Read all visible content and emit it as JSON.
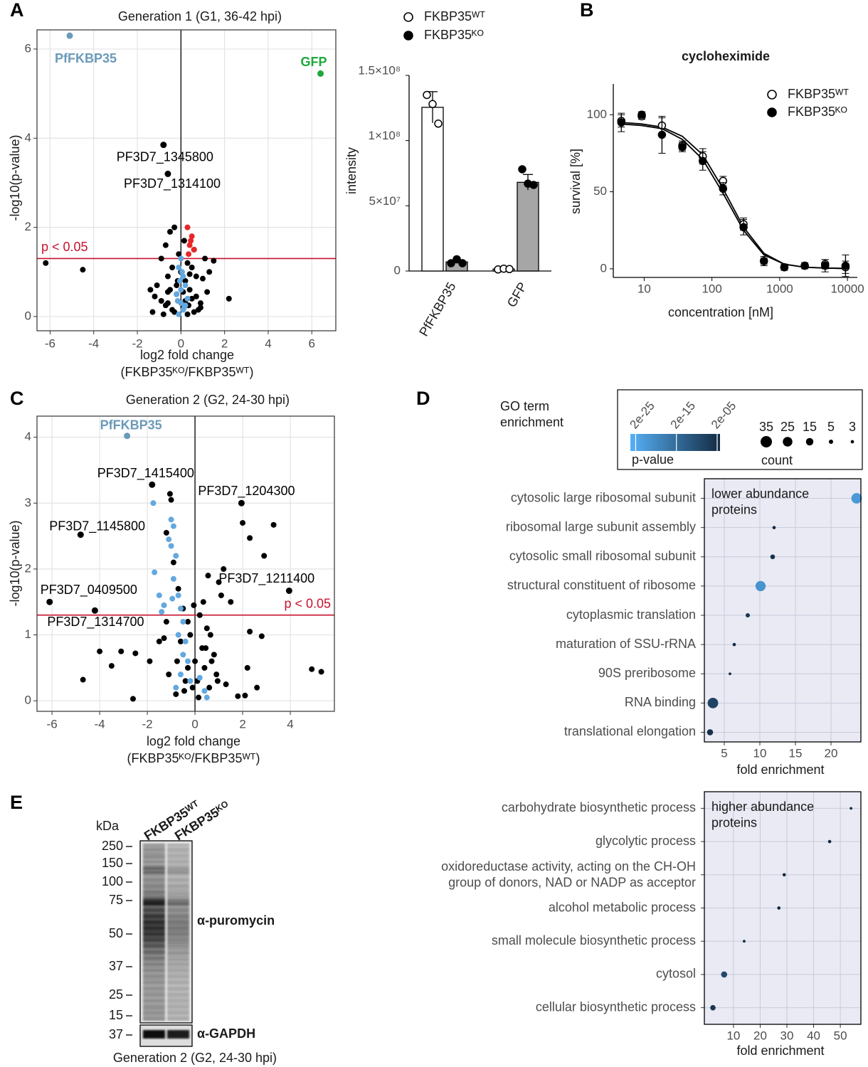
{
  "chart_data": [
    {
      "type": "scatter",
      "panel": "A",
      "title": "Generation 1 (G1, 36-42 hpi)",
      "xlabel": "log2 fold change",
      "xlabel2": "(FKBP35ᴷᴼ/FKBP35ᵂᵀ)",
      "ylabel": "-log10(p-value)",
      "xlim": [
        -6.6,
        7.1
      ],
      "ylim": [
        -0.32,
        6.43
      ],
      "xticks": [
        -6,
        -4,
        -2,
        0,
        2,
        4,
        6
      ],
      "yticks": [
        0,
        2,
        4,
        6
      ],
      "grid": true,
      "threshold": 1.301,
      "threshold_label": "p < 0.05",
      "threshold_color": "#c8102e",
      "series": [
        {
          "color": "#000000",
          "x": [
            -6.2,
            -4.5,
            -1.3,
            -1.1,
            -0.9,
            -0.7,
            -0.6,
            -0.5,
            -0.4,
            -0.3,
            -0.2,
            -0.1,
            0,
            0.1,
            0.2,
            0.3,
            0.4,
            0.5,
            0.6,
            0.7,
            0.9,
            1.1,
            1.3,
            2.2,
            -1.4,
            -0.8,
            -0.6,
            -0.3,
            0.2,
            0.5,
            0.8,
            1.2,
            -0.9,
            -0.5,
            0.3,
            0.7,
            1.0,
            -0.2,
            0.1,
            0.6,
            -1.2,
            -0.7,
            0.4,
            0.9,
            -0.4,
            0.15,
            -0.15,
            0.35,
            -0.6,
            1.5
          ],
          "values": [
            1.2,
            1.05,
            0.1,
            0.7,
            1.3,
            1.6,
            0.3,
            1.9,
            1.1,
            2.0,
            0.5,
            1.4,
            1.0,
            0.2,
            0.8,
            1.2,
            0.6,
            0.4,
            1.5,
            0.9,
            0.3,
            1.3,
            1.0,
            0.4,
            0.6,
            0.05,
            0.9,
            0.1,
            0.35,
            1.1,
            0.15,
            0.55,
            0.35,
            0.6,
            0.05,
            0.45,
            0.85,
            0.7,
            0.55,
            0.1,
            0.45,
            0.25,
            0.95,
            0.2,
            0.15,
            1.7,
            0.8,
            0.25,
            0.55,
            1.25
          ]
        },
        {
          "color": "#63a8df",
          "x": [
            0,
            -0.1,
            0.1,
            0.2,
            -0.2,
            0,
            0.1,
            -0.1,
            0.2,
            0,
            0.3,
            -0.05,
            0.05,
            0.15,
            -0.15
          ],
          "values": [
            1.3,
            1.1,
            0.9,
            0.7,
            0.5,
            0.3,
            0.15,
            0.05,
            0.25,
            0.6,
            0.4,
            0.8,
            1.0,
            0.2,
            0.35
          ]
        },
        {
          "color": "#e8262a",
          "x": [
            0.3,
            0.5,
            0.4,
            0.6,
            0.35,
            0.45
          ],
          "values": [
            2.0,
            1.8,
            1.6,
            1.5,
            1.4,
            1.7
          ]
        },
        {
          "color": "#6a9ab8",
          "label_bold": true,
          "x": [
            -5.1
          ],
          "values": [
            6.3
          ],
          "labels": [
            "PfFKBP35"
          ]
        },
        {
          "color": "#1ea83c",
          "label_bold": true,
          "x": [
            6.4
          ],
          "values": [
            5.45
          ],
          "labels": [
            "GFP"
          ]
        },
        {
          "color": "#000000",
          "x": [
            -0.8
          ],
          "values": [
            3.85
          ],
          "labels": [
            "PF3D7_1345800"
          ]
        },
        {
          "color": "#000000",
          "x": [
            -0.6
          ],
          "values": [
            3.2
          ],
          "labels": [
            "PF3D7_1314100"
          ]
        }
      ]
    },
    {
      "type": "bar",
      "ylabel": "intensity",
      "categories": [
        "PfFKBP35",
        "GFP"
      ],
      "ylim": [
        0,
        158700000
      ],
      "yticks": [
        0,
        {
          "value": 50000000,
          "label": "5×10⁷"
        },
        {
          "value": 100000000,
          "label": "1×10⁸"
        },
        {
          "value": 150000000,
          "label": "1.5×10⁸"
        }
      ],
      "series": [
        {
          "name": "FKBP35ᵂᵀ",
          "color": "#ffffff",
          "marker": "open",
          "values": [
            125500000,
            1500000
          ],
          "errors": [
            12000000,
            0
          ],
          "points": [
            [
              135000000,
              128000000,
              113000000
            ],
            [
              1200000,
              1800000,
              1500000
            ]
          ]
        },
        {
          "name": "FKBP35ᴷᴼ",
          "color": "#a6a6a6",
          "marker": "filled",
          "values": [
            7000000,
            68000000
          ],
          "errors": [
            1000000,
            6000000
          ],
          "points": [
            [
              6000000,
              9000000,
              6000000
            ],
            [
              78000000,
              67000000,
              66000000
            ]
          ]
        }
      ]
    },
    {
      "type": "line",
      "panel": "B",
      "title": "cycloheximide",
      "xlabel": "concentration [nM]",
      "ylabel": "survival [%]",
      "xlog": true,
      "xlim": [
        3.5,
        14000
      ],
      "ylim": [
        -5.6,
        120
      ],
      "xticks": [
        10,
        100,
        1000,
        10000
      ],
      "yticks": [
        0,
        50,
        100
      ],
      "x": [
        4.6,
        9.2,
        18.3,
        36.6,
        73.2,
        146,
        293,
        586,
        1172,
        2344,
        4688,
        9375
      ],
      "series": [
        {
          "name": "FKBP35ᵂᵀ",
          "color": "#000000",
          "marker": "open",
          "values": [
            96,
            99,
            93,
            80,
            73,
            57,
            29,
            5,
            1,
            2,
            3,
            1
          ],
          "errors": [
            4,
            2,
            5,
            3,
            5,
            3,
            4,
            2,
            2,
            1,
            3,
            4
          ],
          "fit": [
            95,
            94,
            92,
            86,
            74,
            52,
            27,
            10,
            3,
            1,
            0.5,
            0.2
          ]
        },
        {
          "name": "FKBP35ᴷᴼ",
          "color": "#000000",
          "marker": "filled",
          "values": [
            95,
            100,
            87,
            79,
            70,
            52,
            27,
            5,
            1,
            2,
            2,
            2
          ],
          "errors": [
            6,
            2,
            12,
            3,
            6,
            4,
            5,
            3,
            2,
            2,
            4,
            7
          ],
          "fit": [
            94,
            93,
            91,
            84,
            71,
            49,
            25,
            9,
            3,
            1,
            0.5,
            0.2
          ]
        }
      ]
    },
    {
      "type": "scatter",
      "panel": "C",
      "title": "Generation 2 (G2, 24-30 hpi)",
      "xlabel": "log2 fold change",
      "xlabel2": "(FKBP35ᴷᴼ/FKBP35ᵂᵀ)",
      "ylabel": "-log10(p-value)",
      "xlim": [
        -6.63,
        5.85
      ],
      "ylim": [
        -0.16,
        4.32
      ],
      "xticks": [
        -6,
        -4,
        -2,
        0,
        2,
        4
      ],
      "yticks": [
        0,
        1,
        2,
        3,
        4
      ],
      "grid": true,
      "threshold": 1.301,
      "threshold_label": "p < 0.05",
      "threshold_color": "#c8102e",
      "series": [
        {
          "color": "#000000",
          "x": [
            -0.05,
            -4.7,
            -4,
            -3.5,
            -3.1,
            -2.5,
            -2.6,
            -1.9,
            -1.05,
            -1.0,
            -1.2,
            2.0,
            2.3,
            3.3,
            2.9,
            1.5,
            2.3,
            2.8,
            2.2,
            2.6,
            2.1,
            1.8,
            4.9,
            5.3,
            1.2,
            1.0,
            -1.5,
            -1.2,
            -0.9,
            -0.7,
            -0.5,
            -0.3,
            -0.1,
            0.1,
            0.3,
            0.5,
            0.7,
            0.9,
            1.1,
            -0.8,
            -0.6,
            -0.4,
            -0.2,
            0,
            0.2,
            0.4,
            0.6,
            0.8,
            -1.1,
            -0.3,
            0.35,
            0.65,
            -0.75,
            0.15,
            -0.45,
            0.45,
            0.95,
            -1.3,
            1.3,
            0.55
          ],
          "values": [
            1.45,
            0.32,
            0.75,
            0.53,
            0.75,
            0.72,
            0.03,
            0.6,
            3.14,
            3.05,
            2.55,
            2.7,
            2.47,
            2.67,
            2.2,
            1.5,
            1.05,
            0.98,
            0.5,
            0.2,
            0.08,
            0.07,
            0.48,
            0.44,
            2.0,
            1.8,
            0.9,
            1.2,
            2.1,
            1.7,
            1.4,
            0.5,
            0.2,
            0.3,
            0.8,
            1.1,
            0.6,
            0.4,
            1.6,
            0.1,
            0.9,
            0.3,
            1.0,
            0.6,
            1.3,
            0.5,
            0.2,
            0.7,
            0.4,
            1.2,
            1.5,
            1.0,
            0.6,
            0.05,
            0.15,
            0.8,
            0.3,
            0.95,
            0.25,
            1.9
          ]
        },
        {
          "color": "#63a8df",
          "x": [
            -1.75,
            -1.7,
            -1.5,
            -1.4,
            -1.0,
            -0.9,
            -1.0,
            -0.8,
            -0.9,
            -0.7,
            -0.6,
            -0.5,
            -0.4,
            -0.3,
            -0.6,
            -0.8,
            -0.2,
            0.2,
            0.4,
            -1.3,
            -0.7,
            -0.5,
            0.5,
            -1.1,
            -0.95
          ],
          "values": [
            3.0,
            1.95,
            1.6,
            1.35,
            2.75,
            2.65,
            2.35,
            2.2,
            1.85,
            1.6,
            1.4,
            1.2,
            0.9,
            0.6,
            0.4,
            0.2,
            0.3,
            0.35,
            0.15,
            1.45,
            1.0,
            0.7,
            0.05,
            2.45,
            1.55
          ]
        },
        {
          "color": "#6a9ab8",
          "label_bold": true,
          "x": [
            -2.85
          ],
          "values": [
            4.02
          ],
          "labels": [
            "PfFKBP35"
          ]
        },
        {
          "color": "#000000",
          "x": [
            -1.8
          ],
          "values": [
            3.28
          ],
          "labels": [
            "PF3D7_1415400"
          ]
        },
        {
          "color": "#000000",
          "x": [
            1.95
          ],
          "values": [
            3.0
          ],
          "labels": [
            "PF3D7_1204300"
          ]
        },
        {
          "color": "#000000",
          "x": [
            -4.8
          ],
          "values": [
            2.52
          ],
          "labels": [
            "PF3D7_1145800"
          ]
        },
        {
          "color": "#000000",
          "x": [
            3.95
          ],
          "values": [
            1.67
          ],
          "labels": [
            "PF3D7_1211400"
          ]
        },
        {
          "color": "#000000",
          "x": [
            -6.1
          ],
          "values": [
            1.5
          ],
          "labels": [
            "PF3D7_0409500"
          ]
        },
        {
          "color": "#000000",
          "x": [
            -4.2
          ],
          "values": [
            1.37
          ],
          "labels": [
            "PF3D7_1314700"
          ]
        }
      ]
    },
    {
      "type": "dot",
      "panel": "D",
      "legend_title": "GO term\nenrichment",
      "colorbar_title": "p-value",
      "clim": [
        1e-26,
        0.0001
      ],
      "color_low": "#56B1F7",
      "color_high": "#132B43",
      "colorbar_ticks": [
        {
          "value": 2e-25,
          "label": "2e-25"
        },
        {
          "value": 2e-15,
          "label": "2e-15"
        },
        {
          "value": 2e-05,
          "label": "2e-05"
        }
      ],
      "size_title": "count",
      "size_legend": [
        35,
        25,
        15,
        5,
        3
      ],
      "panel_label": "lower abundance\nproteins",
      "xlabel": "fold enrichment",
      "xlim": [
        2.2,
        24.2
      ],
      "xticks": [
        5,
        10,
        15,
        20
      ],
      "grid": true,
      "categories": [
        "cytosolic large ribosomal subunit",
        "ribosomal large subunit assembly",
        "cytosolic small ribosomal subunit",
        "structural constituent of ribosome",
        "cytoplasmic translation",
        "maturation of SSU-rRNA",
        "90S preribosome",
        "RNA binding",
        "translational elongation"
      ],
      "values": [
        23.6,
        12.0,
        11.8,
        10.1,
        8.3,
        6.4,
        5.8,
        3.4,
        3.0
      ],
      "counts": [
        30,
        3,
        6,
        28,
        5,
        3,
        2,
        30,
        10
      ],
      "pvalues": [
        1e-22,
        0.0001,
        1e-05,
        1e-21,
        1e-06,
        0.0001,
        0.0001,
        1e-08,
        1e-05
      ]
    },
    {
      "type": "dot",
      "panel_label": "higher abundance\nproteins",
      "xlabel": "fold enrichment",
      "xlim": [
        -0.9,
        57.7
      ],
      "xticks": [
        10,
        20,
        30,
        40,
        50
      ],
      "grid": true,
      "clim": [
        1e-26,
        0.0001
      ],
      "color_low": "#56B1F7",
      "color_high": "#132B43",
      "categories": [
        "carbohydrate biosynthetic process",
        "glycolytic process",
        "oxidoreductase activity, acting on the CH-OH\ngroup of donors, NAD or NADP as acceptor",
        "alcohol metabolic process",
        "small molecule biosynthetic process",
        "cytosol",
        "cellular biosynthetic process"
      ],
      "values": [
        54,
        46,
        29,
        27,
        14,
        6.5,
        2.3
      ],
      "counts": [
        2,
        3,
        3,
        3,
        2,
        10,
        8
      ],
      "pvalues": [
        0.0001,
        0.0001,
        0.0001,
        0.0001,
        0.0001,
        1e-09,
        1e-06
      ]
    }
  ],
  "blot": {
    "panel": "E",
    "unit": "kDa",
    "lanes": [
      "FKBP35ᵂᵀ",
      "FKBP35ᴷᴼ"
    ],
    "markers": [
      250,
      150,
      100,
      75,
      50,
      37,
      25,
      15
    ],
    "loading_marker": 37,
    "antibodies": [
      "α-puromycin",
      "α-GAPDH"
    ],
    "caption": "Generation 2 (G2, 24-30 hpi)"
  }
}
